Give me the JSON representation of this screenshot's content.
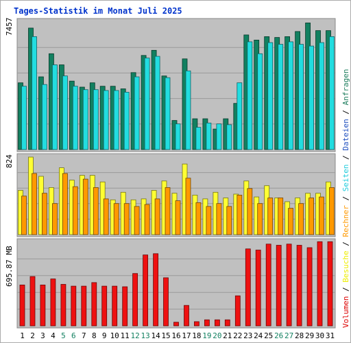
{
  "chart_data": [
    {
      "type": "bar",
      "title": "Tages-Statistik im Monat Juli 2025",
      "categories": [
        "1",
        "2",
        "3",
        "4",
        "5",
        "6",
        "7",
        "8",
        "9",
        "10",
        "11",
        "12",
        "13",
        "14",
        "15",
        "16",
        "17",
        "18",
        "19",
        "20",
        "21",
        "22",
        "23",
        "24",
        "25",
        "26",
        "27",
        "28",
        "29",
        "30",
        "31"
      ],
      "weekend_categories": [
        "5",
        "6",
        "12",
        "13",
        "19",
        "20",
        "26",
        "27"
      ],
      "ylabel_max": "7457",
      "ylim": [
        0,
        7457
      ],
      "legend": [
        {
          "label": "Anfragen",
          "color": "#1f7f5f"
        },
        {
          "label": "Dateien",
          "color": "#1f4fbf"
        },
        {
          "label": "Seiten",
          "color": "#22ccdd"
        }
      ],
      "series": [
        {
          "name": "Anfragen",
          "color": "#128060",
          "values": [
            3900,
            7100,
            4250,
            5600,
            4950,
            4000,
            3650,
            3900,
            3700,
            3700,
            3550,
            4500,
            5500,
            5800,
            4300,
            1700,
            5300,
            1800,
            1800,
            1200,
            1800,
            2700,
            6700,
            6400,
            6600,
            6550,
            6600,
            6900,
            7400,
            6950,
            6950
          ]
        },
        {
          "name": "Seiten",
          "color": "#22dde0",
          "values": [
            3700,
            6600,
            3800,
            4950,
            4300,
            3700,
            3500,
            3500,
            3450,
            3450,
            3350,
            4250,
            5350,
            5450,
            4200,
            1500,
            4600,
            1300,
            1550,
            1500,
            1450,
            3900,
            6300,
            5600,
            6250,
            6150,
            6300,
            6150,
            6050,
            6250,
            6600
          ]
        }
      ]
    },
    {
      "type": "bar",
      "ylabel_max": "824",
      "ylim": [
        0,
        824
      ],
      "legend": [
        {
          "label": "Besuche",
          "color": "#eeee00"
        },
        {
          "label": "Rechner",
          "color": "#ff9900"
        }
      ],
      "series": [
        {
          "name": "Besuche",
          "color": "#ffff33",
          "values": [
            470,
            824,
            620,
            500,
            710,
            580,
            630,
            630,
            560,
            370,
            450,
            370,
            380,
            470,
            570,
            440,
            750,
            420,
            380,
            450,
            390,
            430,
            570,
            400,
            520,
            390,
            350,
            390,
            440,
            440,
            560
          ]
        },
        {
          "name": "Rechner",
          "color": "#ff9900",
          "values": [
            410,
            650,
            440,
            330,
            650,
            510,
            590,
            500,
            380,
            330,
            330,
            300,
            320,
            380,
            500,
            360,
            600,
            340,
            300,
            330,
            300,
            420,
            490,
            330,
            390,
            390,
            280,
            330,
            390,
            400,
            500
          ]
        }
      ]
    },
    {
      "type": "bar",
      "ylabel_max": "695.87 MB",
      "ylim": [
        0,
        695.87
      ],
      "legend": [
        {
          "label": "Volumen",
          "color": "#dd0000"
        }
      ],
      "series": [
        {
          "name": "Volumen",
          "color": "#ee1111",
          "values": [
            340,
            410,
            340,
            390,
            345,
            330,
            330,
            360,
            330,
            330,
            325,
            435,
            590,
            600,
            400,
            30,
            170,
            35,
            50,
            50,
            50,
            250,
            640,
            630,
            680,
            670,
            680,
            670,
            650,
            700,
            700
          ]
        }
      ]
    }
  ]
}
